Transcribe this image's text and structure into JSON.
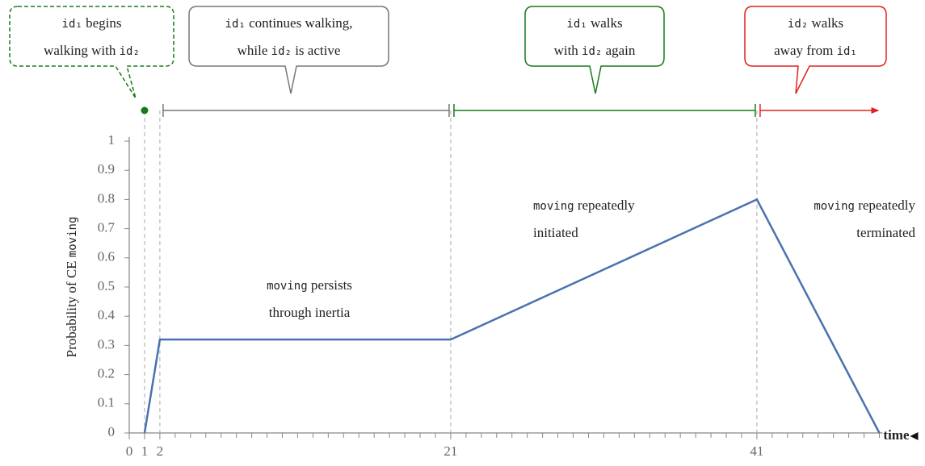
{
  "chart_data": {
    "type": "line",
    "ylabel": [
      "Probability of CE ",
      {
        "code": "moving"
      }
    ],
    "xlabel": "time",
    "x": [
      1,
      2,
      21,
      41,
      49
    ],
    "values": [
      0,
      0.32,
      0.32,
      0.8,
      0
    ],
    "color": "#4a72b0",
    "xlim": [
      0,
      49
    ],
    "ylim": [
      0,
      1
    ],
    "xticks": [
      0,
      1,
      2,
      21,
      41
    ],
    "minor_xticks": [
      3,
      4,
      5,
      6,
      7,
      8,
      9,
      10,
      11,
      12,
      13,
      14,
      15,
      16,
      17,
      18,
      19,
      20,
      22,
      23,
      24,
      25,
      26,
      27,
      28,
      29,
      30,
      31,
      32,
      33,
      34,
      35,
      36,
      37,
      38,
      39,
      40,
      42,
      43,
      44,
      45,
      46,
      47,
      48,
      49
    ],
    "yticks": [
      0,
      0.1,
      0.2,
      0.3,
      0.4,
      0.5,
      0.6,
      0.7,
      0.8,
      0.9,
      1
    ],
    "annotations": [
      {
        "lines": [
          [
            {
              "code": "moving"
            },
            " persists"
          ],
          [
            "through inertia"
          ]
        ]
      },
      {
        "lines": [
          [
            {
              "code": "moving"
            },
            " repeatedly"
          ],
          [
            "initiated"
          ]
        ]
      },
      {
        "lines": [
          [
            {
              "code": "moving"
            },
            " repeatedly"
          ],
          [
            "terminated"
          ]
        ]
      }
    ],
    "periods": [
      {
        "start": 1,
        "end": 1,
        "color": "#1a7a1a",
        "dashed": true,
        "callout": [
          [
            {
              "code": "id₁"
            },
            " begins"
          ],
          [
            "walking with ",
            {
              "code": "id₂"
            }
          ]
        ]
      },
      {
        "start": 2,
        "end": 21,
        "color": "#777777",
        "callout": [
          [
            {
              "code": "id₁"
            },
            " continues walking,"
          ],
          [
            "while ",
            {
              "code": "id₂"
            },
            " is active"
          ]
        ]
      },
      {
        "start": 21,
        "end": 41,
        "color": "#1a7a1a",
        "callout": [
          [
            {
              "code": "id₁"
            },
            " walks"
          ],
          [
            "with ",
            {
              "code": "id₂"
            },
            " again"
          ]
        ]
      },
      {
        "start": 41,
        "end": 49,
        "color": "#e02020",
        "arrow": true,
        "callout": [
          [
            {
              "code": "id₂"
            },
            " walks"
          ],
          [
            "away from ",
            {
              "code": "id₁"
            }
          ]
        ]
      }
    ]
  }
}
